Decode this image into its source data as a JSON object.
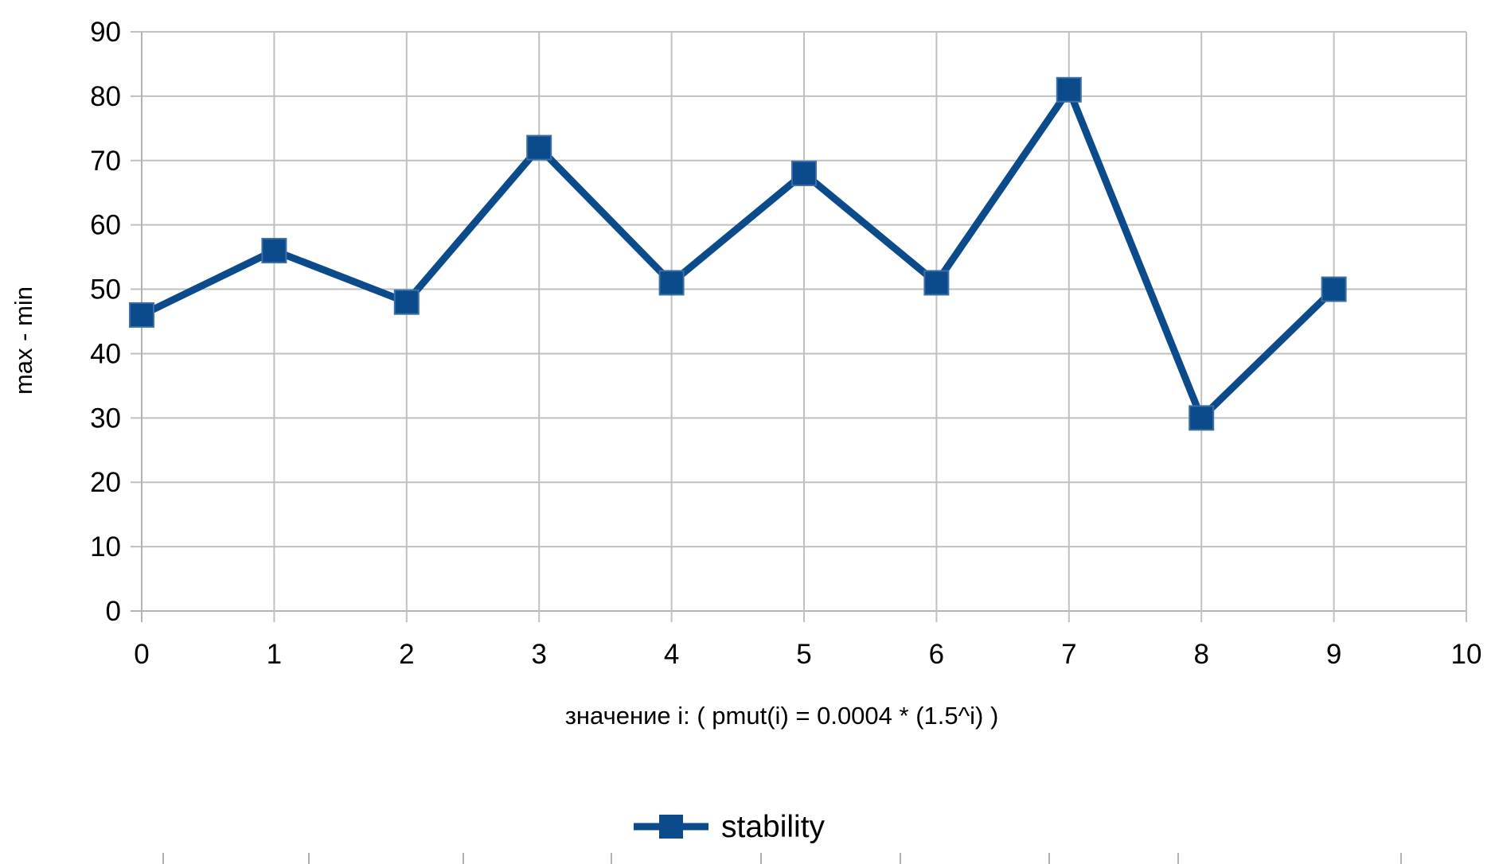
{
  "chart_data": {
    "type": "line",
    "title": "",
    "xlabel": "значение i: ( pmut(i) = 0.0004 * (1.5^i) )",
    "ylabel": "max - min",
    "xlim": [
      0,
      10
    ],
    "ylim": [
      0,
      90
    ],
    "x_ticks": [
      0,
      1,
      2,
      3,
      4,
      5,
      6,
      7,
      8,
      9,
      10
    ],
    "y_ticks": [
      0,
      10,
      20,
      30,
      40,
      50,
      60,
      70,
      80,
      90
    ],
    "grid": true,
    "legend_position": "bottom-center",
    "series": [
      {
        "name": "stability",
        "color": "#0b4a8b",
        "marker": "square",
        "x": [
          0,
          1,
          2,
          3,
          4,
          5,
          6,
          7,
          8,
          9
        ],
        "values": [
          46,
          56,
          48,
          72,
          51,
          68,
          51,
          81,
          30,
          50
        ]
      }
    ]
  },
  "colors": {
    "series": "#0b4a8b",
    "grid": "#c0c0c0",
    "axis": "#b3b3b3"
  }
}
